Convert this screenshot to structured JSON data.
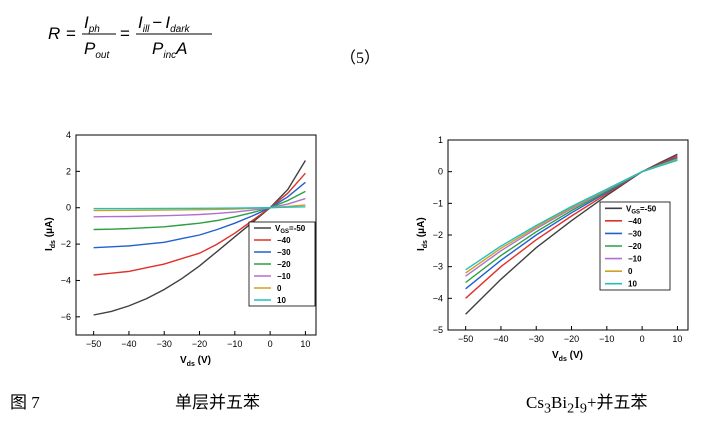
{
  "equation": {
    "lhs": "R",
    "num1": "I",
    "num1_sub": "ph",
    "den1": "P",
    "den1_sub": "out",
    "num2a": "I",
    "num2a_sub": "ill",
    "num2_minus": "−",
    "num2b": "I",
    "num2b_sub": "dark",
    "den2": "P",
    "den2_sub": "inc",
    "den2_tail": "A",
    "eq": "=",
    "number": "（5）"
  },
  "figure": {
    "label": "图  7",
    "caption_left": "单层并五苯",
    "caption_right_html": "Cs<sub>3</sub>Bi<sub>2</sub>I<sub>9</sub>+并五苯"
  },
  "colors": {
    "-50": "#404040",
    "-40": "#e0302a",
    "-30": "#2060d0",
    "-20": "#2aa040",
    "-10": "#b070d0",
    "0": "#d0a020",
    "10": "#20c0c0"
  },
  "chart_data": [
    {
      "type": "line",
      "xlabel": "V_ds (V)",
      "ylabel": "I_ds (μA)",
      "xlim": [
        -55,
        13
      ],
      "ylim": [
        -7,
        4
      ],
      "xticks": [
        -50,
        -40,
        -30,
        -20,
        -10,
        0,
        10
      ],
      "yticks": [
        -6,
        -4,
        -2,
        0,
        2,
        4
      ],
      "legend_title": "V_GS=-50",
      "legend_position": "bottom-right",
      "series": [
        {
          "name": "-50",
          "x": [
            -50,
            -45,
            -40,
            -35,
            -30,
            -25,
            -20,
            -15,
            -10,
            -5,
            0,
            5,
            10
          ],
          "y": [
            -5.9,
            -5.7,
            -5.4,
            -5.0,
            -4.5,
            -3.9,
            -3.2,
            -2.4,
            -1.6,
            -0.8,
            0,
            1.0,
            2.6
          ]
        },
        {
          "name": "-40",
          "x": [
            -50,
            -45,
            -40,
            -35,
            -30,
            -25,
            -20,
            -15,
            -10,
            -5,
            0,
            5,
            10
          ],
          "y": [
            -3.7,
            -3.6,
            -3.5,
            -3.3,
            -3.1,
            -2.8,
            -2.5,
            -2.0,
            -1.4,
            -0.7,
            0,
            0.8,
            1.9
          ]
        },
        {
          "name": "-30",
          "x": [
            -50,
            -45,
            -40,
            -35,
            -30,
            -25,
            -20,
            -15,
            -10,
            -5,
            0,
            5,
            10
          ],
          "y": [
            -2.2,
            -2.15,
            -2.1,
            -2.0,
            -1.9,
            -1.7,
            -1.5,
            -1.2,
            -0.85,
            -0.45,
            0,
            0.6,
            1.4
          ]
        },
        {
          "name": "-20",
          "x": [
            -50,
            -45,
            -40,
            -35,
            -30,
            -25,
            -20,
            -15,
            -10,
            -5,
            0,
            5,
            10
          ],
          "y": [
            -1.2,
            -1.18,
            -1.15,
            -1.1,
            -1.05,
            -0.95,
            -0.85,
            -0.7,
            -0.5,
            -0.27,
            0,
            0.4,
            0.9
          ]
        },
        {
          "name": "-10",
          "x": [
            -50,
            -45,
            -40,
            -35,
            -30,
            -25,
            -20,
            -15,
            -10,
            -5,
            0,
            5,
            10
          ],
          "y": [
            -0.5,
            -0.49,
            -0.48,
            -0.46,
            -0.44,
            -0.41,
            -0.37,
            -0.31,
            -0.24,
            -0.13,
            0,
            0.2,
            0.5
          ]
        },
        {
          "name": "0",
          "x": [
            -50,
            -40,
            -30,
            -20,
            -10,
            0,
            5,
            10
          ],
          "y": [
            -0.15,
            -0.14,
            -0.13,
            -0.11,
            -0.07,
            0,
            0.07,
            0.15
          ]
        },
        {
          "name": "10",
          "x": [
            -50,
            -40,
            -30,
            -20,
            -10,
            0,
            5,
            10
          ],
          "y": [
            -0.05,
            -0.05,
            -0.04,
            -0.03,
            -0.02,
            0,
            0.03,
            0.05
          ]
        }
      ]
    },
    {
      "type": "line",
      "xlabel": "V_ds (V)",
      "ylabel": "I_ds (μA)",
      "xlim": [
        -55,
        13
      ],
      "ylim": [
        -5,
        1
      ],
      "xticks": [
        -50,
        -40,
        -30,
        -20,
        -10,
        0,
        10
      ],
      "yticks": [
        -5,
        -4,
        -3,
        -2,
        -1,
        0,
        1
      ],
      "legend_title": "V_GS=-50",
      "legend_position": "right",
      "series": [
        {
          "name": "-50",
          "x": [
            -50,
            -40,
            -30,
            -20,
            -10,
            0,
            5,
            10
          ],
          "y": [
            -4.5,
            -3.4,
            -2.4,
            -1.55,
            -0.75,
            0,
            0.28,
            0.55
          ]
        },
        {
          "name": "-40",
          "x": [
            -50,
            -40,
            -30,
            -20,
            -10,
            0,
            5,
            10
          ],
          "y": [
            -4.0,
            -3.0,
            -2.15,
            -1.4,
            -0.7,
            0,
            0.25,
            0.5
          ]
        },
        {
          "name": "-30",
          "x": [
            -50,
            -40,
            -30,
            -20,
            -10,
            0,
            5,
            10
          ],
          "y": [
            -3.7,
            -2.8,
            -2.0,
            -1.3,
            -0.65,
            0,
            0.23,
            0.45
          ]
        },
        {
          "name": "-20",
          "x": [
            -50,
            -40,
            -30,
            -20,
            -10,
            0,
            5,
            10
          ],
          "y": [
            -3.5,
            -2.65,
            -1.9,
            -1.23,
            -0.62,
            0,
            0.22,
            0.42
          ]
        },
        {
          "name": "-10",
          "x": [
            -50,
            -40,
            -30,
            -20,
            -10,
            0,
            5,
            10
          ],
          "y": [
            -3.3,
            -2.5,
            -1.8,
            -1.17,
            -0.58,
            0,
            0.2,
            0.4
          ]
        },
        {
          "name": "0",
          "x": [
            -50,
            -40,
            -30,
            -20,
            -10,
            0,
            5,
            10
          ],
          "y": [
            -3.2,
            -2.42,
            -1.75,
            -1.13,
            -0.56,
            0,
            0.19,
            0.38
          ]
        },
        {
          "name": "10",
          "x": [
            -50,
            -40,
            -30,
            -20,
            -10,
            0,
            5,
            10
          ],
          "y": [
            -3.1,
            -2.35,
            -1.7,
            -1.1,
            -0.55,
            0,
            0.18,
            0.36
          ]
        }
      ]
    }
  ]
}
